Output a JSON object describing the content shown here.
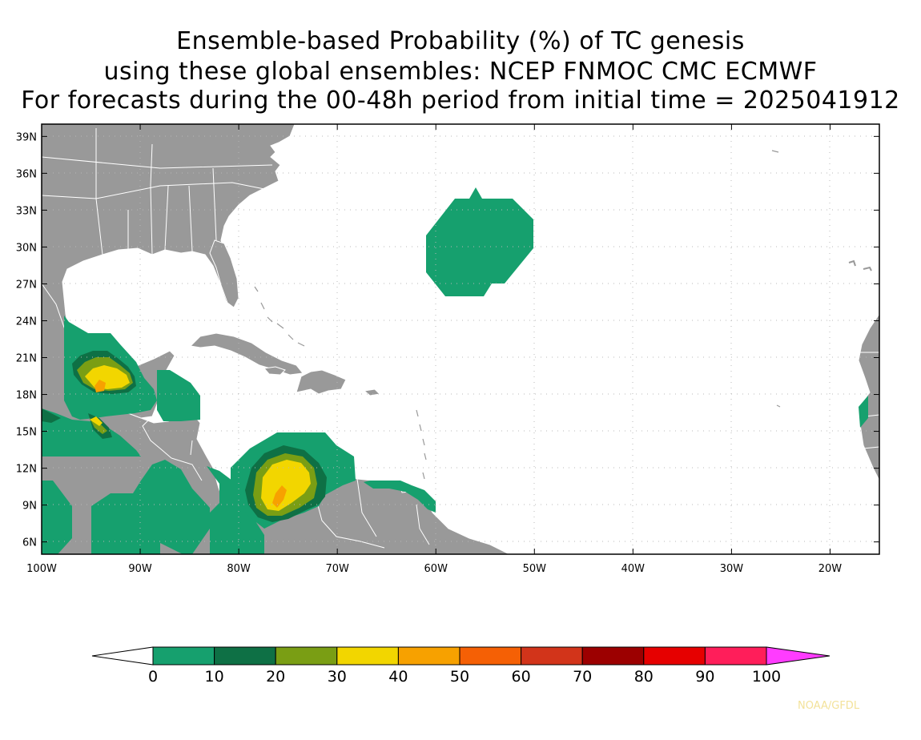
{
  "title": {
    "line1": "Ensemble-based Probability (%) of TC genesis",
    "line2": "using these global ensembles:   NCEP FNMOC CMC ECMWF",
    "line3": "For forecasts during the 00-48h period from initial time = 2025041912"
  },
  "map": {
    "lon_range": [
      -100,
      -15
    ],
    "lat_range": [
      5,
      40
    ],
    "lat_ticks": [
      {
        "value": 39,
        "label": "39N"
      },
      {
        "value": 36,
        "label": "36N"
      },
      {
        "value": 33,
        "label": "33N"
      },
      {
        "value": 30,
        "label": "30N"
      },
      {
        "value": 27,
        "label": "27N"
      },
      {
        "value": 24,
        "label": "24N"
      },
      {
        "value": 21,
        "label": "21N"
      },
      {
        "value": 18,
        "label": "18N"
      },
      {
        "value": 15,
        "label": "15N"
      },
      {
        "value": 12,
        "label": "12N"
      },
      {
        "value": 9,
        "label": "9N"
      },
      {
        "value": 6,
        "label": "6N"
      }
    ],
    "lon_ticks": [
      {
        "value": -100,
        "label": "100W"
      },
      {
        "value": -90,
        "label": "90W"
      },
      {
        "value": -80,
        "label": "80W"
      },
      {
        "value": -70,
        "label": "70W"
      },
      {
        "value": -60,
        "label": "60W"
      },
      {
        "value": -50,
        "label": "50W"
      },
      {
        "value": -40,
        "label": "40W"
      },
      {
        "value": -30,
        "label": "30W"
      },
      {
        "value": -20,
        "label": "20W"
      }
    ],
    "grid": true,
    "land_color": "#999999",
    "border_color": "#ffffff"
  },
  "colorbar": {
    "labels": [
      "0",
      "10",
      "20",
      "30",
      "40",
      "50",
      "60",
      "70",
      "80",
      "90",
      "100"
    ],
    "colors": [
      "#16a06e",
      "#0e7045",
      "#7a9e14",
      "#f2d600",
      "#f7a100",
      "#f56005",
      "#d2341a",
      "#9c0000",
      "#e60000",
      "#ff1e5a"
    ],
    "under_color": "#ffffff",
    "over_color": "#ff3cff"
  },
  "credit": "NOAA/GFDL"
}
